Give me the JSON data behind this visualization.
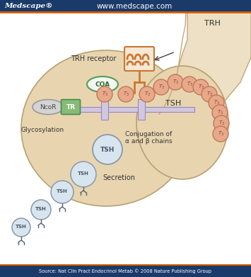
{
  "title_left": "Medscape®",
  "title_center": "www.medscape.com",
  "source_text": "Source: Nat Clin Pract Endocrinol Metab © 2008 Nature Publishing Group",
  "header_bg": "#1a3a6a",
  "header_orange_line": "#d45f00",
  "footer_bg": "#1a3a6a",
  "bg_color": "#ffffff",
  "main_bg": "#ffffff",
  "cell_fill": "#e8d5b0",
  "cell_stroke": "#b8a070",
  "axon_fill": "#ede0c4",
  "axon_stroke": "#c0a87a",
  "trh_receptor_color": "#cc7733",
  "t3_fill": "#e8a88a",
  "t3_stroke": "#c07858",
  "tsh_fill_outer": "#c0ccd8",
  "tsh_fill_inner": "#d8e4ee",
  "tsh_stroke": "#8899aa",
  "coa_fill": "#f0f8f0",
  "coa_stroke": "#5a9a5a",
  "ncor_fill": "#d4d4d4",
  "ncor_stroke": "#999999",
  "tr_fill": "#88bb77",
  "tr_stroke": "#4a8a4a",
  "chrom_fill": "#d0c8e0",
  "chrom_stroke": "#9988bb",
  "text_dark": "#333333",
  "text_green": "#336633",
  "text_tsh": "#445566",
  "text_t3": "#884433"
}
